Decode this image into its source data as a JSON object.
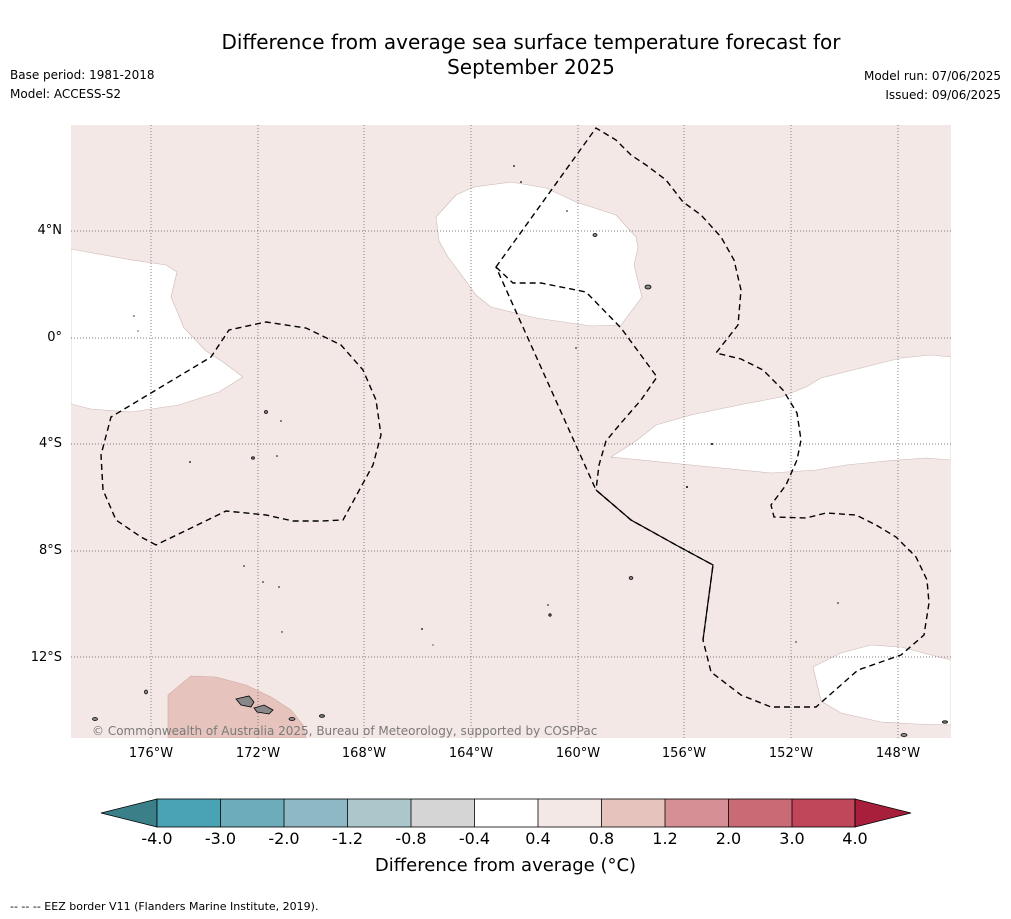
{
  "header": {
    "title_line1": "Difference from average sea surface temperature forecast for",
    "title_line2": "September 2025",
    "base_period": "Base period: 1981-2018",
    "model": "Model: ACCESS-S2",
    "model_run": "Model run: 07/06/2025",
    "issued": "Issued: 09/06/2025"
  },
  "map": {
    "copyright": "© Commonwealth of Australia 2025, Bureau of Meteorology, supported by COSPPac",
    "lat_labels": [
      "4°N",
      "0°",
      "4°S",
      "8°S",
      "12°S"
    ],
    "lon_labels": [
      "176°W",
      "172°W",
      "168°W",
      "164°W",
      "160°W",
      "156°W",
      "152°W",
      "148°W"
    ],
    "colors": {
      "background_anomaly": "#f4e8e6",
      "neutral": "#ffffff",
      "warm_anomaly": "#e6c4bd",
      "land": "#888888",
      "eez_border": "#000000"
    }
  },
  "colorbar": {
    "title": "Difference from average (°C)",
    "ticks": [
      "-4.0",
      "-3.0",
      "-2.0",
      "-1.2",
      "-0.8",
      "-0.4",
      "0.4",
      "0.8",
      "1.2",
      "2.0",
      "3.0",
      "4.0"
    ],
    "colors": [
      "#3b7f89",
      "#4aa3b4",
      "#6cacbb",
      "#8db8c4",
      "#acc7cc",
      "#d5d5d5",
      "#ffffff",
      "#f4e8e6",
      "#e6c4bd",
      "#d68f95",
      "#c96a74",
      "#bf4759",
      "#a81f3c"
    ]
  },
  "footer": {
    "eez_note": "--  --  -- EEZ border V11 (Flanders Marine Institute, 2019)."
  }
}
